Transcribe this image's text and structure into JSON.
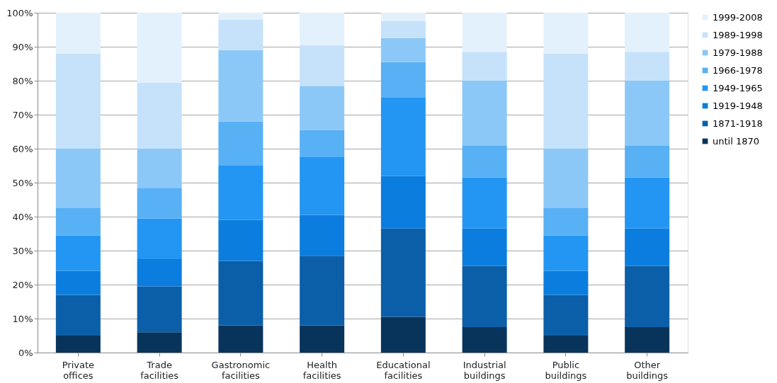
{
  "chart_data": {
    "type": "bar",
    "stacked": true,
    "categories": [
      "Private offices",
      "Trade facilities",
      "Gastronomic facilities",
      "Health facilities",
      "Educational facilities",
      "Industrial buildings",
      "Public buildings",
      "Other buildings"
    ],
    "series": [
      {
        "name": "until 1870",
        "color": "#08345c",
        "values": [
          5,
          6,
          8,
          8,
          10.5,
          7.5,
          5,
          7.5
        ]
      },
      {
        "name": "1871-1918",
        "color": "#0a5fa8",
        "values": [
          12,
          13.5,
          19,
          20.5,
          26,
          18,
          12,
          18
        ]
      },
      {
        "name": "1919-1948",
        "color": "#0b7ddf",
        "values": [
          7,
          8,
          12,
          12,
          15.5,
          11,
          7,
          11
        ]
      },
      {
        "name": "1949-1965",
        "color": "#2396f3",
        "values": [
          10.5,
          12,
          16,
          17,
          23,
          15,
          10.5,
          15
        ]
      },
      {
        "name": "1966-1978",
        "color": "#58b0f5",
        "values": [
          8,
          9,
          13,
          8,
          10.5,
          9.5,
          8,
          9.5
        ]
      },
      {
        "name": "1979-1988",
        "color": "#8cc8f7",
        "values": [
          17.5,
          11.5,
          21,
          13,
          7,
          19,
          17.5,
          19
        ]
      },
      {
        "name": "1989-1998",
        "color": "#c6e2fb",
        "values": [
          28,
          19.5,
          9,
          12,
          5,
          8.5,
          28,
          8.5
        ]
      },
      {
        "name": "1999-2008",
        "color": "#e3f1fd",
        "values": [
          12,
          20.5,
          2,
          9.5,
          2.5,
          11.5,
          12,
          11.5
        ]
      }
    ],
    "ylim": [
      0,
      100
    ],
    "yticks": [
      {
        "value": 0,
        "label": "0%"
      },
      {
        "value": 10,
        "label": "10%"
      },
      {
        "value": 20,
        "label": "20%"
      },
      {
        "value": 30,
        "label": "30%"
      },
      {
        "value": 40,
        "label": "40%"
      },
      {
        "value": 50,
        "label": "50%"
      },
      {
        "value": 60,
        "label": "60%"
      },
      {
        "value": 70,
        "label": "70%"
      },
      {
        "value": 80,
        "label": "80%"
      },
      {
        "value": 90,
        "label": "90%"
      },
      {
        "value": 100,
        "label": "100%"
      }
    ],
    "grid": "y",
    "legend": "right"
  }
}
